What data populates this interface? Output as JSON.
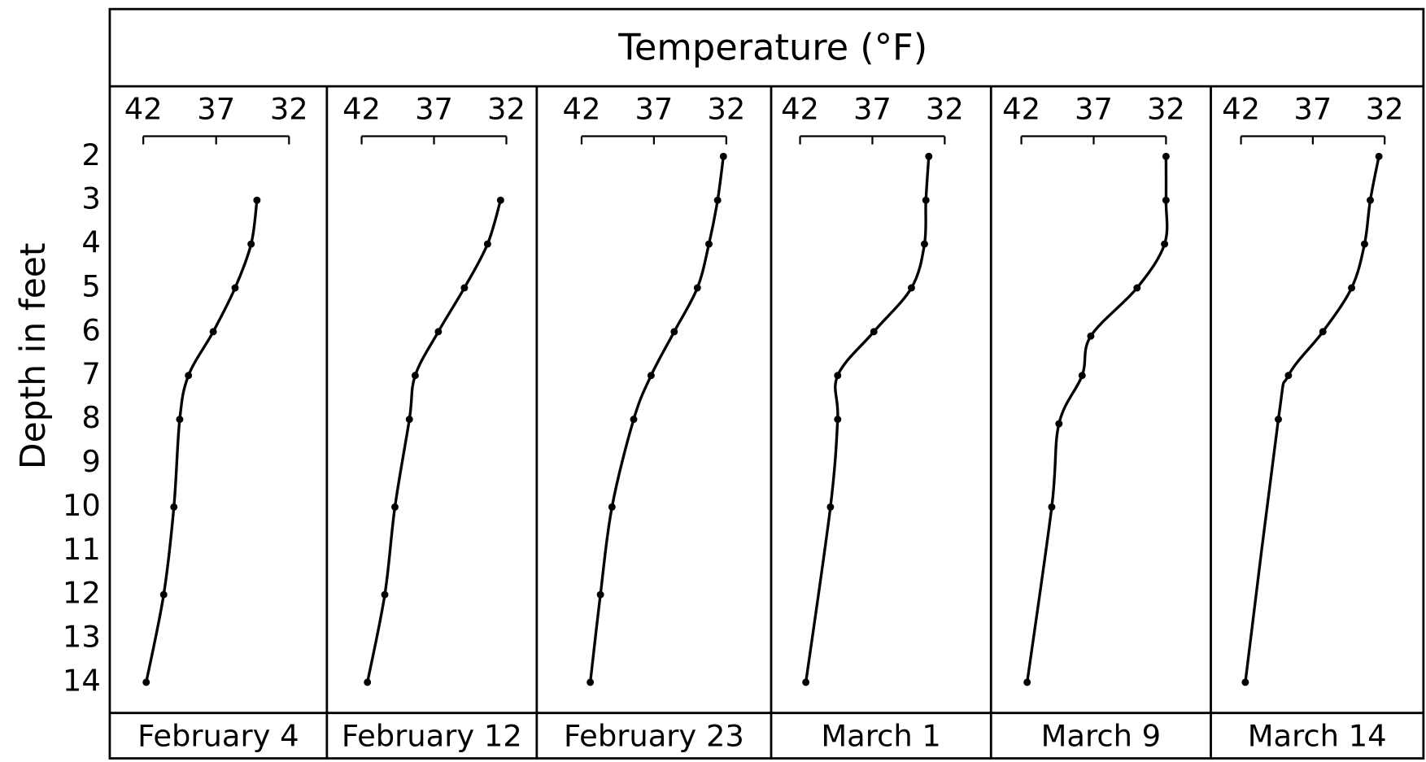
{
  "title": "Temperature (°F)",
  "ylabel": "Depth in feet",
  "ylim": [
    0.4,
    14.7
  ],
  "yticks": [
    2,
    3,
    4,
    5,
    6,
    7,
    8,
    9,
    10,
    11,
    12,
    13,
    14
  ],
  "chart_data": [
    {
      "type": "line",
      "title": "February 4",
      "xlim": [
        44.3,
        29.4
      ],
      "xticks": [
        42,
        37,
        32
      ],
      "x": [
        34.2,
        34.6,
        35.7,
        37.2,
        38.9,
        39.5,
        39.9,
        40.6,
        41.8
      ],
      "values": [
        3,
        4,
        5,
        6,
        7,
        8,
        10,
        12,
        14
      ]
    },
    {
      "type": "line",
      "title": "February 12",
      "xlim": [
        44.4,
        29.9
      ],
      "xticks": [
        42,
        37,
        32
      ],
      "x": [
        32.4,
        33.3,
        34.9,
        36.7,
        38.3,
        38.7,
        39.7,
        40.4,
        41.6
      ],
      "values": [
        3,
        4,
        5,
        6,
        7,
        8,
        10,
        12,
        14
      ]
    },
    {
      "type": "line",
      "title": "February 23",
      "xlim": [
        45.1,
        28.9
      ],
      "xticks": [
        42,
        37,
        32
      ],
      "x": [
        32.2,
        32.6,
        33.2,
        34.0,
        35.6,
        37.2,
        38.4,
        39.9,
        40.7,
        41.4
      ],
      "values": [
        2,
        3,
        4,
        5,
        6,
        7,
        8,
        10,
        12,
        14
      ]
    },
    {
      "type": "line",
      "title": "March 1",
      "xlim": [
        44.0,
        28.8
      ],
      "xticks": [
        42,
        37,
        32
      ],
      "x": [
        33.1,
        33.3,
        33.4,
        34.3,
        36.9,
        39.4,
        39.4,
        39.9,
        41.6
      ],
      "values": [
        2,
        3,
        4,
        5,
        6,
        7,
        8,
        10,
        14
      ]
    },
    {
      "type": "line",
      "title": "March 9",
      "xlim": [
        44.1,
        28.9
      ],
      "xticks": [
        42,
        37,
        32
      ],
      "x": [
        32.0,
        32.0,
        32.1,
        34.0,
        37.2,
        37.8,
        39.4,
        39.9,
        41.6
      ],
      "values": [
        2,
        3,
        4,
        5,
        6.1,
        7,
        8.1,
        10,
        14
      ]
    },
    {
      "type": "line",
      "title": "March 14",
      "xlim": [
        44.1,
        29.3
      ],
      "xticks": [
        42,
        37,
        32
      ],
      "x": [
        32.4,
        33.0,
        33.4,
        34.3,
        36.3,
        38.7,
        39.4,
        41.7
      ],
      "values": [
        2,
        3,
        4,
        5,
        6,
        7,
        8,
        14
      ]
    }
  ]
}
